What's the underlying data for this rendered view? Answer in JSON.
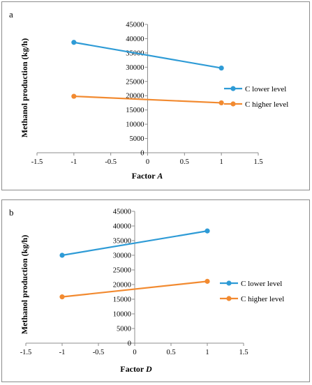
{
  "chart_data": [
    {
      "type": "line",
      "panel_label": "a",
      "xlabel_prefix": "Factor ",
      "xlabel_var": "A",
      "ylabel": "Methanol production (kg/h)",
      "xlim": [
        -1.5,
        1.5
      ],
      "ylim": [
        0,
        45000
      ],
      "xticks": [
        -1.5,
        -1,
        -0.5,
        0,
        0.5,
        1,
        1.5
      ],
      "xtick_labels": [
        "-1.5",
        "-1",
        "-0.5",
        "0",
        "0.5",
        "1",
        "1.5"
      ],
      "yticks": [
        0,
        5000,
        10000,
        15000,
        20000,
        25000,
        30000,
        35000,
        40000,
        45000
      ],
      "ytick_labels": [
        "0",
        "5000",
        "10000",
        "15000",
        "20000",
        "25000",
        "30000",
        "35000",
        "40000",
        "45000"
      ],
      "legend_position": "right",
      "series": [
        {
          "name": "C lower level",
          "color": "#2e9bd6",
          "x": [
            -1,
            1
          ],
          "y": [
            38700,
            29700
          ]
        },
        {
          "name": "C higher level",
          "color": "#f28a30",
          "x": [
            -1,
            1
          ],
          "y": [
            19800,
            17500
          ]
        }
      ]
    },
    {
      "type": "line",
      "panel_label": "b",
      "xlabel_prefix": "Factor ",
      "xlabel_var": "D",
      "ylabel": "Methanol production (kg/h)",
      "xlim": [
        -1.5,
        1.5
      ],
      "ylim": [
        0,
        45000
      ],
      "xticks": [
        -1.5,
        -1,
        -0.5,
        0,
        0.5,
        1,
        1.5
      ],
      "xtick_labels": [
        "-1.5",
        "-1",
        "-0.5",
        "0",
        "0.5",
        "1",
        "1.5"
      ],
      "yticks": [
        0,
        5000,
        10000,
        15000,
        20000,
        25000,
        30000,
        35000,
        40000,
        45000
      ],
      "ytick_labels": [
        "0",
        "5000",
        "10000",
        "15000",
        "20000",
        "25000",
        "30000",
        "35000",
        "40000",
        "45000"
      ],
      "legend_position": "right",
      "series": [
        {
          "name": "C lower level",
          "color": "#2e9bd6",
          "x": [
            -1,
            1
          ],
          "y": [
            30000,
            38300
          ]
        },
        {
          "name": "C higher level",
          "color": "#f28a30",
          "x": [
            -1,
            1
          ],
          "y": [
            15800,
            21100
          ]
        }
      ]
    }
  ]
}
